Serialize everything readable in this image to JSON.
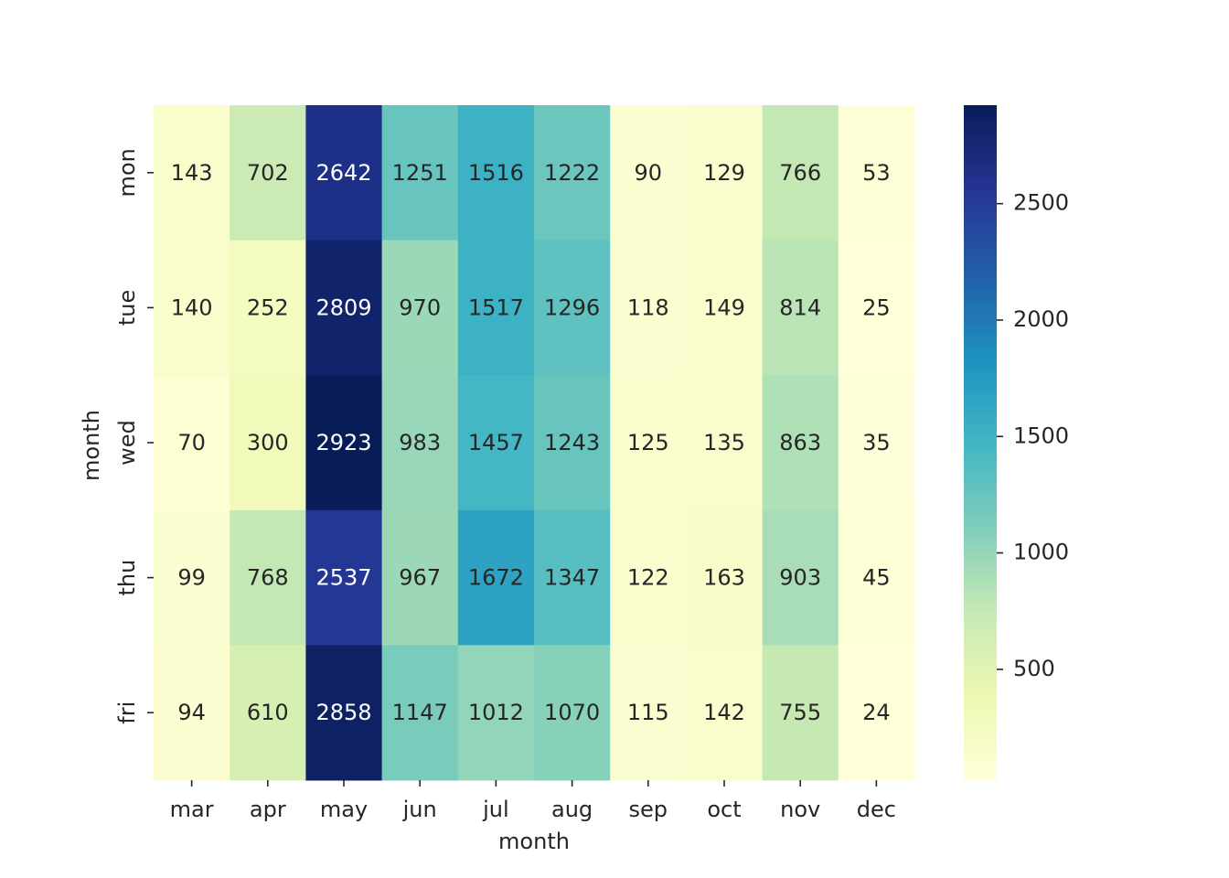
{
  "chart_data": {
    "type": "heatmap",
    "title": "",
    "xlabel": "month",
    "ylabel": "month",
    "x_categories": [
      "mar",
      "apr",
      "may",
      "jun",
      "jul",
      "aug",
      "sep",
      "oct",
      "nov",
      "dec"
    ],
    "y_categories": [
      "mon",
      "tue",
      "wed",
      "thu",
      "fri"
    ],
    "values": [
      [
        143,
        702,
        2642,
        1251,
        1516,
        1222,
        90,
        129,
        766,
        53
      ],
      [
        140,
        252,
        2809,
        970,
        1517,
        1296,
        118,
        149,
        814,
        25
      ],
      [
        70,
        300,
        2923,
        983,
        1457,
        1243,
        125,
        135,
        863,
        35
      ],
      [
        99,
        768,
        2537,
        967,
        1672,
        1347,
        122,
        163,
        903,
        45
      ],
      [
        94,
        610,
        2858,
        1147,
        1012,
        1070,
        115,
        142,
        755,
        24
      ]
    ],
    "colormap": "YlGnBu",
    "colorbar": {
      "range": [
        24,
        2923
      ],
      "ticks": [
        500,
        1000,
        1500,
        2000,
        2500
      ]
    },
    "annotations": true
  }
}
